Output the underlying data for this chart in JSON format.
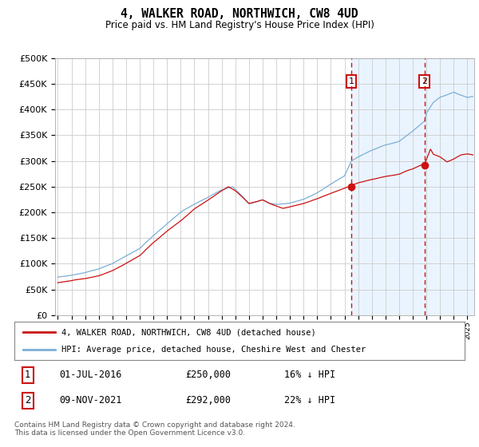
{
  "title": "4, WALKER ROAD, NORTHWICH, CW8 4UD",
  "subtitle": "Price paid vs. HM Land Registry's House Price Index (HPI)",
  "legend_line1": "4, WALKER ROAD, NORTHWICH, CW8 4UD (detached house)",
  "legend_line2": "HPI: Average price, detached house, Cheshire West and Chester",
  "annotation1_date": "01-JUL-2016",
  "annotation1_price": "£250,000",
  "annotation1_hpi": "16% ↓ HPI",
  "annotation2_date": "09-NOV-2021",
  "annotation2_price": "£292,000",
  "annotation2_hpi": "22% ↓ HPI",
  "footer": "Contains HM Land Registry data © Crown copyright and database right 2024.\nThis data is licensed under the Open Government Licence v3.0.",
  "sale1_year": 2016.5,
  "sale1_value": 250000,
  "sale2_year": 2021.85,
  "sale2_value": 292000,
  "hpi_color": "#7bafd4",
  "price_color": "#cc1111",
  "vline_color": "#cc1111",
  "highlight_color": "#ddeeff",
  "ylim_min": 0,
  "ylim_max": 500000,
  "xlim_min": 1994.8,
  "xlim_max": 2025.5,
  "background_color": "#ffffff",
  "grid_color": "#cccccc"
}
